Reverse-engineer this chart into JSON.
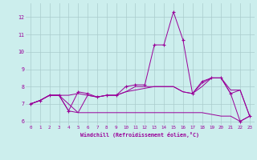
{
  "xlabel": "Windchill (Refroidissement éolien,°C)",
  "ylabel": "",
  "background_color": "#cceeed",
  "line_color": "#990099",
  "grid_color": "#aacccc",
  "text_color": "#990099",
  "xlim": [
    -0.5,
    23.5
  ],
  "ylim": [
    5.8,
    12.8
  ],
  "yticks": [
    6,
    7,
    8,
    9,
    10,
    11,
    12
  ],
  "xticks": [
    0,
    1,
    2,
    3,
    4,
    5,
    6,
    7,
    8,
    9,
    10,
    11,
    12,
    13,
    14,
    15,
    16,
    17,
    18,
    19,
    20,
    21,
    22,
    23
  ],
  "lines": [
    {
      "x": [
        0,
        1,
        2,
        3,
        4,
        5,
        6,
        7,
        8,
        9,
        10,
        11,
        12,
        13,
        14,
        15,
        16,
        17,
        18,
        19,
        20,
        21,
        22,
        23
      ],
      "y": [
        7.0,
        7.2,
        7.5,
        7.5,
        6.6,
        7.7,
        7.6,
        7.4,
        7.5,
        7.5,
        8.0,
        8.1,
        8.1,
        10.4,
        10.4,
        12.3,
        10.7,
        7.6,
        8.3,
        8.5,
        8.5,
        7.6,
        6.0,
        6.3
      ],
      "marker": "+"
    },
    {
      "x": [
        0,
        1,
        2,
        3,
        4,
        5,
        6,
        7,
        8,
        9,
        10,
        11,
        12,
        13,
        14,
        15,
        16,
        17,
        18,
        19,
        20,
        21,
        22,
        23
      ],
      "y": [
        7.0,
        7.2,
        7.5,
        7.5,
        7.5,
        7.6,
        7.5,
        7.4,
        7.5,
        7.5,
        7.7,
        7.8,
        7.9,
        8.0,
        8.0,
        8.0,
        7.7,
        7.6,
        8.2,
        8.5,
        8.5,
        7.6,
        7.8,
        6.3
      ],
      "marker": null
    },
    {
      "x": [
        0,
        1,
        2,
        3,
        4,
        5,
        6,
        7,
        8,
        9,
        10,
        11,
        12,
        13,
        14,
        15,
        16,
        17,
        18,
        19,
        20,
        21,
        22,
        23
      ],
      "y": [
        7.0,
        7.2,
        7.5,
        7.5,
        6.6,
        6.5,
        6.5,
        6.5,
        6.5,
        6.5,
        6.5,
        6.5,
        6.5,
        6.5,
        6.5,
        6.5,
        6.5,
        6.5,
        6.5,
        6.4,
        6.3,
        6.3,
        6.0,
        6.3
      ],
      "marker": null
    },
    {
      "x": [
        0,
        1,
        2,
        3,
        4,
        5,
        6,
        7,
        8,
        9,
        10,
        11,
        12,
        13,
        14,
        15,
        16,
        17,
        18,
        19,
        20,
        21,
        22,
        23
      ],
      "y": [
        7.0,
        7.2,
        7.5,
        7.5,
        7.0,
        6.5,
        7.5,
        7.4,
        7.5,
        7.5,
        7.7,
        8.0,
        8.0,
        8.0,
        8.0,
        8.0,
        7.7,
        7.6,
        8.0,
        8.5,
        8.5,
        7.8,
        7.8,
        6.3
      ],
      "marker": null
    }
  ],
  "figsize": [
    3.2,
    2.0
  ],
  "dpi": 100
}
